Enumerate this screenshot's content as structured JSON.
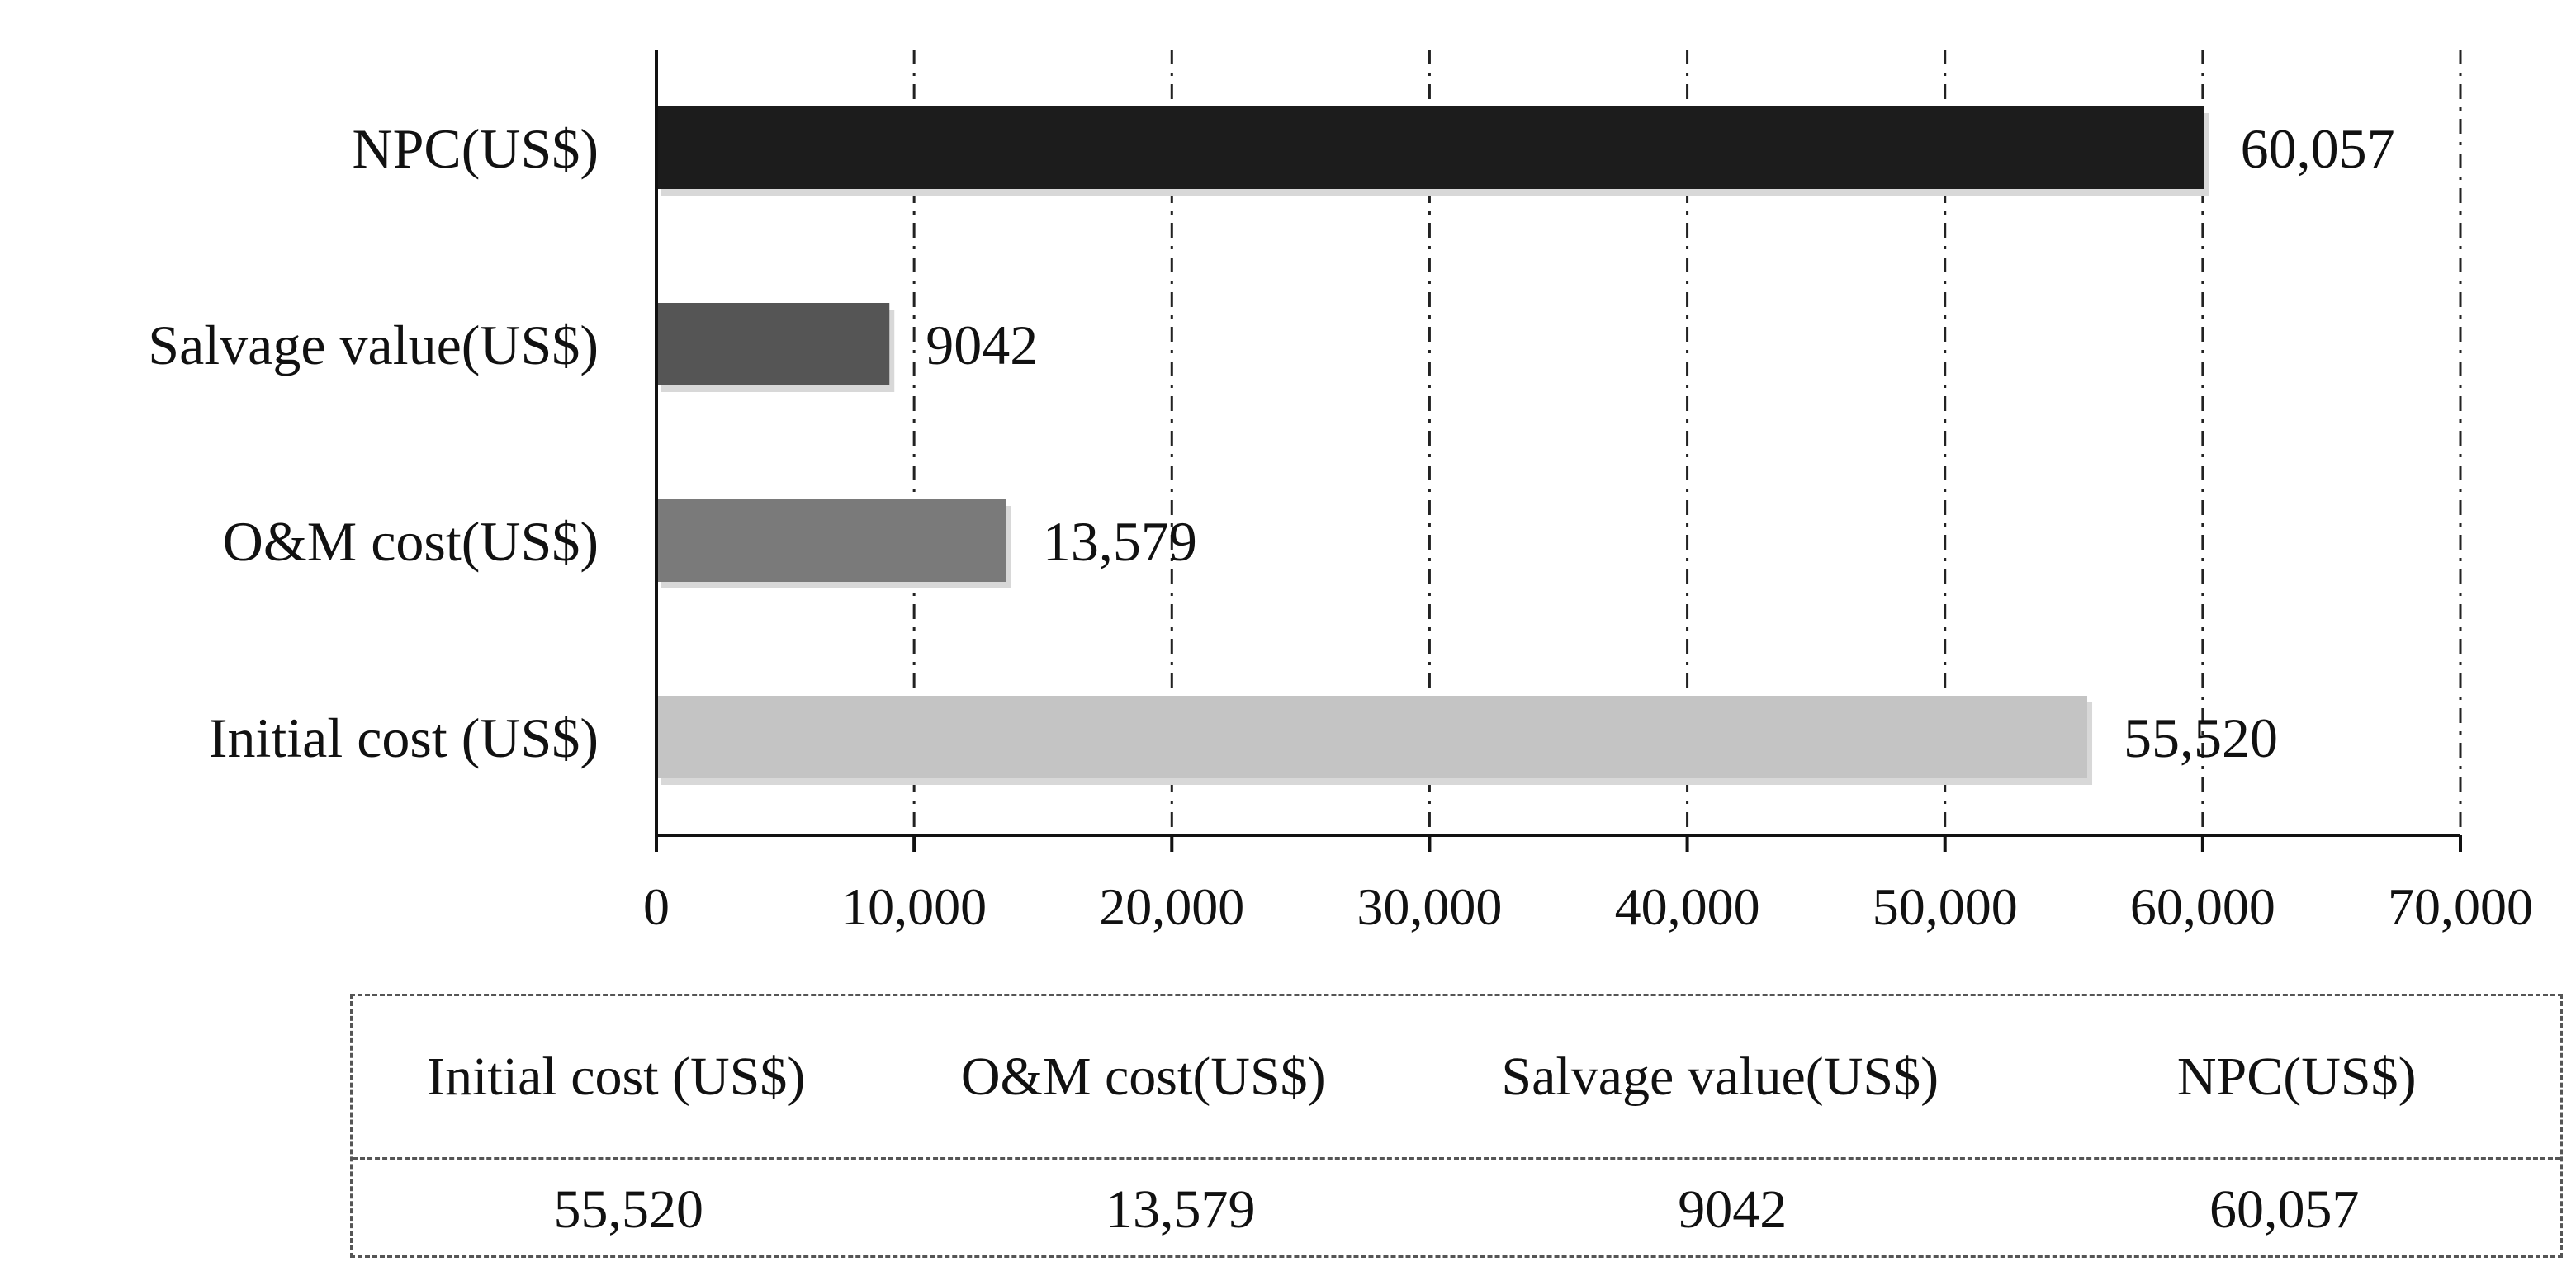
{
  "chart_data": {
    "type": "bar",
    "orientation": "horizontal",
    "categories": [
      "Initial cost (US$)",
      "O&M cost(US$)",
      "Salvage value(US$)",
      "NPC(US$)"
    ],
    "values": [
      55520,
      13579,
      9042,
      60057
    ],
    "value_labels": [
      "55,520",
      "13,579",
      "9042",
      "60,057"
    ],
    "bar_colors": [
      "#c4c4c4",
      "#7a7a7a",
      "#555555",
      "#1c1c1c"
    ],
    "xlim": [
      0,
      70000
    ],
    "x_ticks": [
      0,
      10000,
      20000,
      30000,
      40000,
      50000,
      60000,
      70000
    ],
    "x_tick_labels": [
      "0",
      "10,000",
      "20,000",
      "30,000",
      "40,000",
      "50,000",
      "60,000",
      "70,000"
    ],
    "grid": "vertical dash-dot",
    "legend": "none",
    "title": "",
    "xlabel": "",
    "ylabel": ""
  },
  "table": {
    "headers": [
      "Initial cost (US$)",
      "O&M cost(US$)",
      "Salvage value(US$)",
      "NPC(US$)"
    ],
    "values": [
      "55,520",
      "13,579",
      "9042",
      "60,057"
    ]
  }
}
